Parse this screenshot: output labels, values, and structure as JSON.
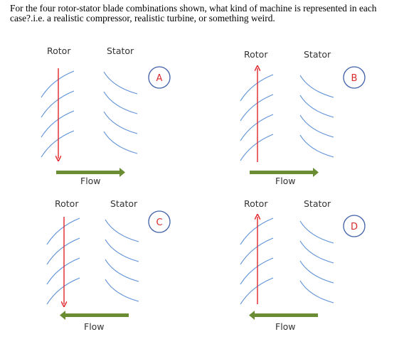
{
  "question": "For the four rotor-stator blade combinations shown, what kind of machine is represented in each case?.i.e. a realistic compressor, realistic turbine, or something weird.",
  "panels": [
    {
      "id": "A",
      "rotor_label": "Rotor",
      "stator_label": "Stator",
      "flow_label": "Flow",
      "rotor_direction": "down",
      "flow_direction": "right"
    },
    {
      "id": "B",
      "rotor_label": "Rotor",
      "stator_label": "Stator",
      "flow_label": "Flow",
      "rotor_direction": "up",
      "flow_direction": "right"
    },
    {
      "id": "C",
      "rotor_label": "Rotor",
      "stator_label": "Stator",
      "flow_label": "Flow",
      "rotor_direction": "down",
      "flow_direction": "left"
    },
    {
      "id": "D",
      "rotor_label": "Rotor",
      "stator_label": "Stator",
      "flow_label": "Flow",
      "rotor_direction": "up",
      "flow_direction": "left"
    }
  ],
  "colors": {
    "blade": "#5b8fd6",
    "rotor_arrow": "#e0252b",
    "flow_arrow": "#6a8d33",
    "circle_border": "#3f5fa8",
    "circle_text": "#d92b2b"
  }
}
